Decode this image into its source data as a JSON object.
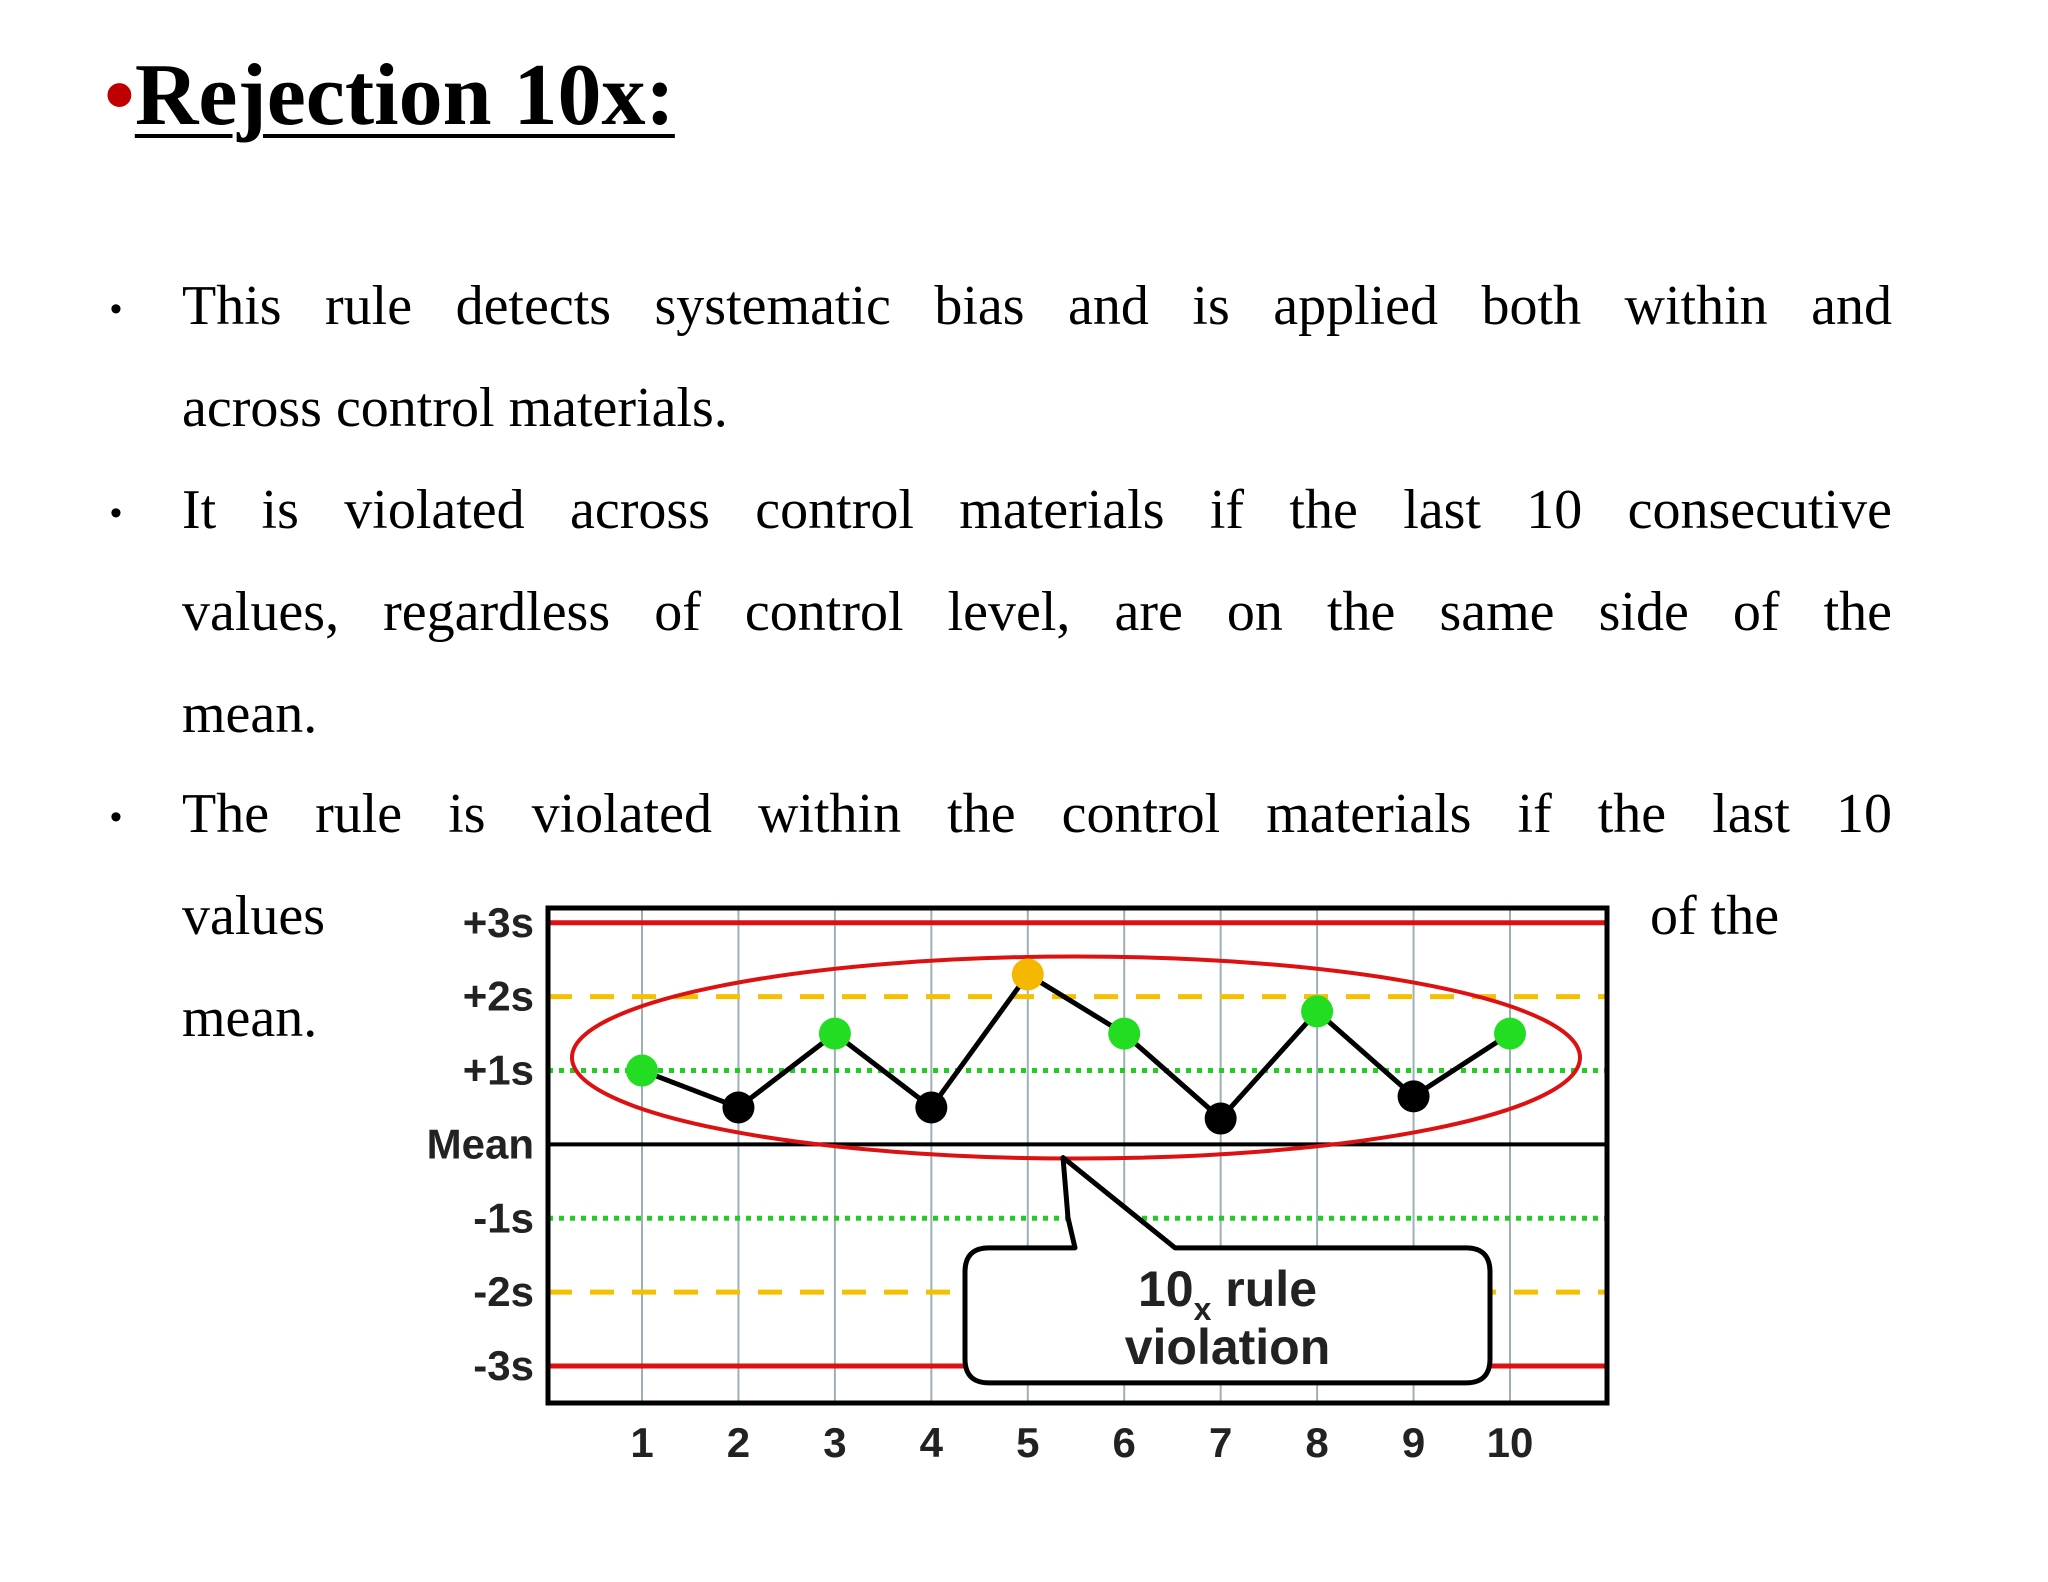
{
  "slide": {
    "title_bullet": "•",
    "title": "Rejection 10x:",
    "bullets": [
      {
        "marker": "•",
        "lines": [
          "This rule detects systematic bias and is applied both within and",
          "across control materials."
        ]
      },
      {
        "marker": "•",
        "lines": [
          "It is violated across control materials if the last 10 consecutive",
          "values, regardless of control level, are on the same side of the",
          "mean."
        ]
      },
      {
        "marker": "•",
        "lines": [
          "The rule is violated within the control materials if the last 10",
          "values",
          "of the",
          "mean."
        ]
      }
    ]
  },
  "chart_data": {
    "type": "line",
    "x": [
      1,
      2,
      3,
      4,
      5,
      6,
      7,
      8,
      9,
      10
    ],
    "x_tick_labels": [
      "1",
      "2",
      "3",
      "4",
      "5",
      "6",
      "7",
      "8",
      "9",
      "10"
    ],
    "ylim": [
      -3.5,
      3.2
    ],
    "y_tick_labels": [
      {
        "value": 3,
        "label": "+3s"
      },
      {
        "value": 2,
        "label": "+2s"
      },
      {
        "value": 1,
        "label": "+1s"
      },
      {
        "value": 0,
        "label": "Mean"
      },
      {
        "value": -1,
        "label": "-1s"
      },
      {
        "value": -2,
        "label": "-2s"
      },
      {
        "value": -3,
        "label": "-3s"
      }
    ],
    "series": [
      {
        "values": [
          1.0,
          0.5,
          1.5,
          0.5,
          2.3,
          1.5,
          0.35,
          1.8,
          0.65,
          1.5
        ],
        "point_colors": [
          "#22dd22",
          "#000000",
          "#22dd22",
          "#000000",
          "#f5b800",
          "#22dd22",
          "#000000",
          "#22dd22",
          "#000000",
          "#22dd22"
        ]
      }
    ],
    "reference_lines": [
      {
        "value": 3,
        "style": "solid",
        "color": "#dd1111"
      },
      {
        "value": 2,
        "style": "dashed",
        "color": "#f5c000"
      },
      {
        "value": 1,
        "style": "dotted",
        "color": "#22cc22"
      },
      {
        "value": 0,
        "style": "solid",
        "color": "#000000"
      },
      {
        "value": -1,
        "style": "dotted",
        "color": "#22cc22"
      },
      {
        "value": -2,
        "style": "dashed",
        "color": "#f5c000"
      },
      {
        "value": -3,
        "style": "solid",
        "color": "#dd1111"
      }
    ],
    "grid": true,
    "highlight_color": "#dd1111",
    "callout": {
      "main": "10",
      "subscript": "x",
      "rest": " rule",
      "line2": "violation"
    }
  }
}
